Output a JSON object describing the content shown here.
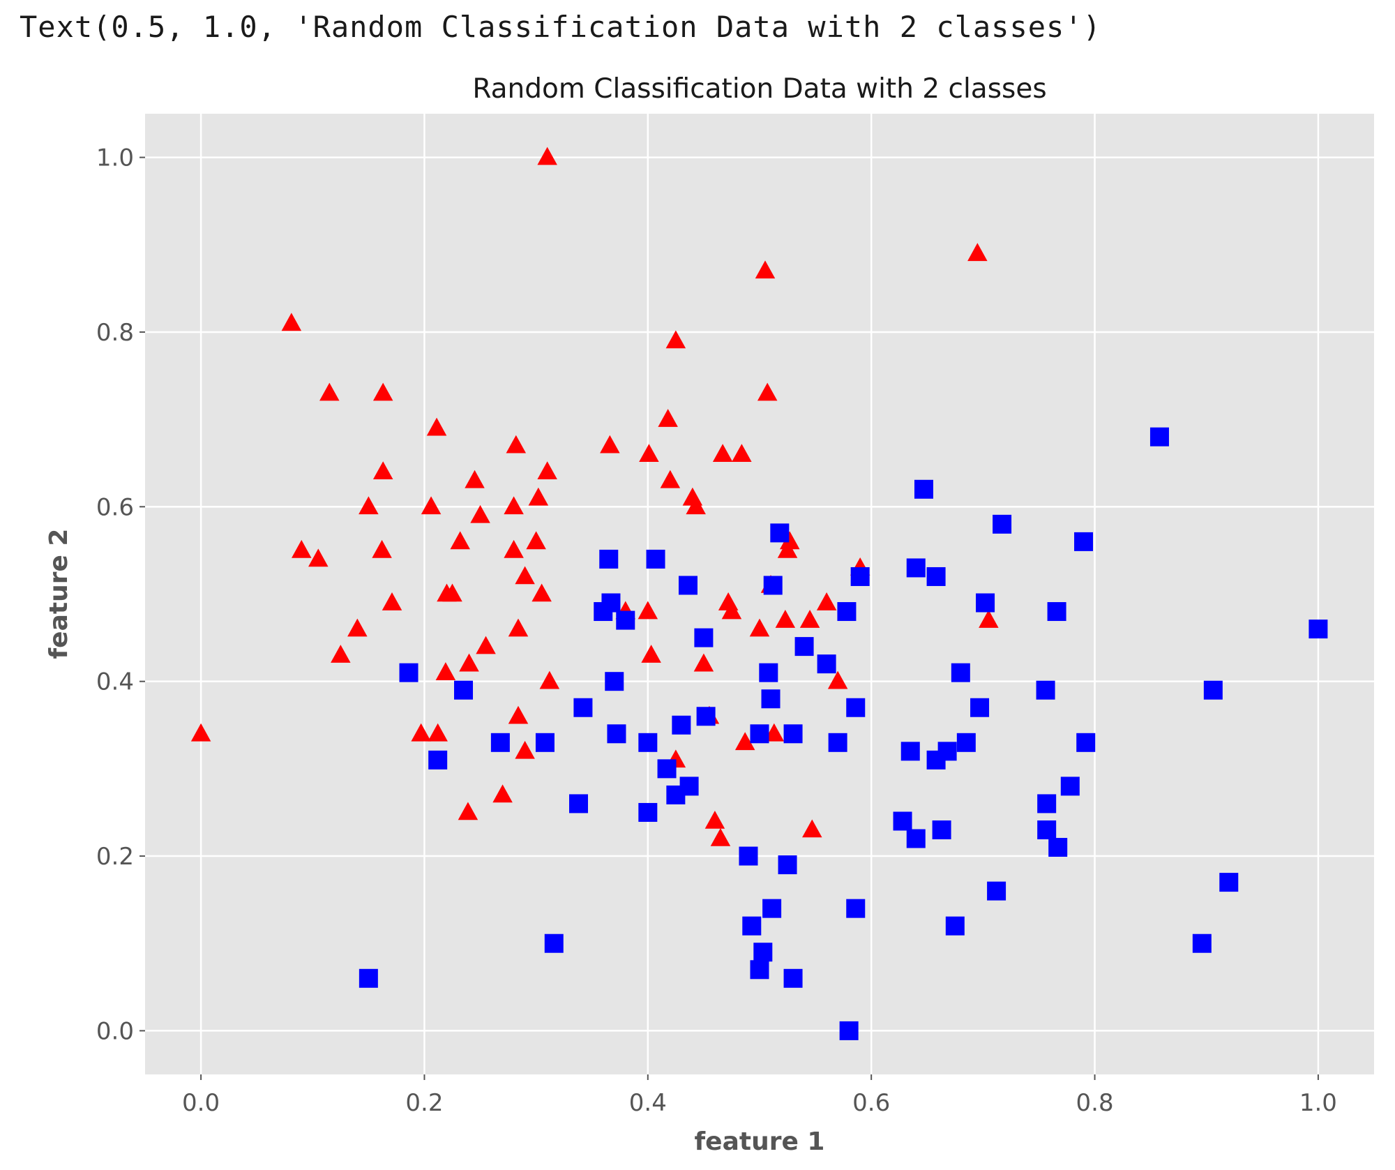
{
  "output_text": "Text(0.5, 1.0, 'Random Classification Data with 2 classes')",
  "chart_data": {
    "type": "scatter",
    "title": "Random Classification Data with 2 classes",
    "xlabel": "feature 1",
    "ylabel": "feature 2",
    "xlim": [
      -0.05,
      1.05
    ],
    "ylim": [
      -0.05,
      1.05
    ],
    "xticks": [
      "0.0",
      "0.2",
      "0.4",
      "0.6",
      "0.8",
      "1.0"
    ],
    "yticks": [
      "0.0",
      "0.2",
      "0.4",
      "0.6",
      "0.8",
      "1.0"
    ],
    "grid": true,
    "background": "#e5e5e5",
    "series": [
      {
        "marker": "triangle",
        "color": "#ff0000",
        "points": [
          [
            0.0,
            0.34
          ],
          [
            0.081,
            0.81
          ],
          [
            0.09,
            0.55
          ],
          [
            0.105,
            0.54
          ],
          [
            0.115,
            0.73
          ],
          [
            0.125,
            0.43
          ],
          [
            0.14,
            0.46
          ],
          [
            0.15,
            0.6
          ],
          [
            0.162,
            0.55
          ],
          [
            0.163,
            0.64
          ],
          [
            0.163,
            0.73
          ],
          [
            0.171,
            0.49
          ],
          [
            0.197,
            0.34
          ],
          [
            0.206,
            0.6
          ],
          [
            0.211,
            0.69
          ],
          [
            0.212,
            0.34
          ],
          [
            0.219,
            0.41
          ],
          [
            0.22,
            0.5
          ],
          [
            0.225,
            0.5
          ],
          [
            0.232,
            0.56
          ],
          [
            0.239,
            0.25
          ],
          [
            0.24,
            0.42
          ],
          [
            0.245,
            0.63
          ],
          [
            0.25,
            0.59
          ],
          [
            0.255,
            0.44
          ],
          [
            0.27,
            0.27
          ],
          [
            0.28,
            0.6
          ],
          [
            0.28,
            0.55
          ],
          [
            0.282,
            0.67
          ],
          [
            0.284,
            0.36
          ],
          [
            0.284,
            0.46
          ],
          [
            0.29,
            0.52
          ],
          [
            0.29,
            0.32
          ],
          [
            0.3,
            0.56
          ],
          [
            0.302,
            0.61
          ],
          [
            0.305,
            0.5
          ],
          [
            0.31,
            0.64
          ],
          [
            0.312,
            0.4
          ],
          [
            0.31,
            1.0
          ],
          [
            0.366,
            0.67
          ],
          [
            0.38,
            0.48
          ],
          [
            0.4,
            0.48
          ],
          [
            0.401,
            0.66
          ],
          [
            0.403,
            0.43
          ],
          [
            0.418,
            0.7
          ],
          [
            0.42,
            0.63
          ],
          [
            0.425,
            0.79
          ],
          [
            0.425,
            0.31
          ],
          [
            0.44,
            0.61
          ],
          [
            0.443,
            0.6
          ],
          [
            0.45,
            0.42
          ],
          [
            0.455,
            0.36
          ],
          [
            0.46,
            0.24
          ],
          [
            0.465,
            0.22
          ],
          [
            0.467,
            0.66
          ],
          [
            0.472,
            0.49
          ],
          [
            0.475,
            0.48
          ],
          [
            0.484,
            0.66
          ],
          [
            0.487,
            0.33
          ],
          [
            0.5,
            0.46
          ],
          [
            0.505,
            0.87
          ],
          [
            0.507,
            0.73
          ],
          [
            0.51,
            0.51
          ],
          [
            0.513,
            0.34
          ],
          [
            0.523,
            0.47
          ],
          [
            0.525,
            0.55
          ],
          [
            0.527,
            0.56
          ],
          [
            0.545,
            0.47
          ],
          [
            0.547,
            0.23
          ],
          [
            0.56,
            0.49
          ],
          [
            0.57,
            0.4
          ],
          [
            0.59,
            0.53
          ],
          [
            0.695,
            0.89
          ],
          [
            0.705,
            0.47
          ]
        ]
      },
      {
        "marker": "square",
        "color": "#0000ff",
        "points": [
          [
            0.15,
            0.06
          ],
          [
            0.186,
            0.41
          ],
          [
            0.212,
            0.31
          ],
          [
            0.235,
            0.39
          ],
          [
            0.268,
            0.33
          ],
          [
            0.308,
            0.33
          ],
          [
            0.316,
            0.1
          ],
          [
            0.338,
            0.26
          ],
          [
            0.342,
            0.37
          ],
          [
            0.36,
            0.48
          ],
          [
            0.365,
            0.54
          ],
          [
            0.367,
            0.49
          ],
          [
            0.37,
            0.4
          ],
          [
            0.372,
            0.34
          ],
          [
            0.38,
            0.47
          ],
          [
            0.4,
            0.33
          ],
          [
            0.4,
            0.25
          ],
          [
            0.407,
            0.54
          ],
          [
            0.417,
            0.3
          ],
          [
            0.425,
            0.27
          ],
          [
            0.43,
            0.35
          ],
          [
            0.436,
            0.51
          ],
          [
            0.437,
            0.28
          ],
          [
            0.45,
            0.45
          ],
          [
            0.452,
            0.36
          ],
          [
            0.49,
            0.2
          ],
          [
            0.493,
            0.12
          ],
          [
            0.5,
            0.34
          ],
          [
            0.5,
            0.07
          ],
          [
            0.503,
            0.09
          ],
          [
            0.508,
            0.41
          ],
          [
            0.51,
            0.38
          ],
          [
            0.511,
            0.14
          ],
          [
            0.512,
            0.51
          ],
          [
            0.518,
            0.57
          ],
          [
            0.525,
            0.19
          ],
          [
            0.53,
            0.06
          ],
          [
            0.53,
            0.34
          ],
          [
            0.54,
            0.44
          ],
          [
            0.56,
            0.42
          ],
          [
            0.57,
            0.33
          ],
          [
            0.578,
            0.48
          ],
          [
            0.58,
            0.0
          ],
          [
            0.586,
            0.37
          ],
          [
            0.586,
            0.14
          ],
          [
            0.59,
            0.52
          ],
          [
            0.628,
            0.24
          ],
          [
            0.635,
            0.32
          ],
          [
            0.64,
            0.22
          ],
          [
            0.64,
            0.53
          ],
          [
            0.647,
            0.62
          ],
          [
            0.658,
            0.52
          ],
          [
            0.658,
            0.31
          ],
          [
            0.663,
            0.23
          ],
          [
            0.668,
            0.32
          ],
          [
            0.675,
            0.12
          ],
          [
            0.68,
            0.41
          ],
          [
            0.685,
            0.33
          ],
          [
            0.697,
            0.37
          ],
          [
            0.702,
            0.49
          ],
          [
            0.712,
            0.16
          ],
          [
            0.717,
            0.58
          ],
          [
            0.756,
            0.39
          ],
          [
            0.757,
            0.26
          ],
          [
            0.757,
            0.23
          ],
          [
            0.766,
            0.48
          ],
          [
            0.767,
            0.21
          ],
          [
            0.778,
            0.28
          ],
          [
            0.79,
            0.56
          ],
          [
            0.792,
            0.33
          ],
          [
            0.858,
            0.68
          ],
          [
            0.896,
            0.1
          ],
          [
            0.906,
            0.39
          ],
          [
            0.92,
            0.17
          ],
          [
            1.0,
            0.46
          ]
        ]
      }
    ]
  }
}
